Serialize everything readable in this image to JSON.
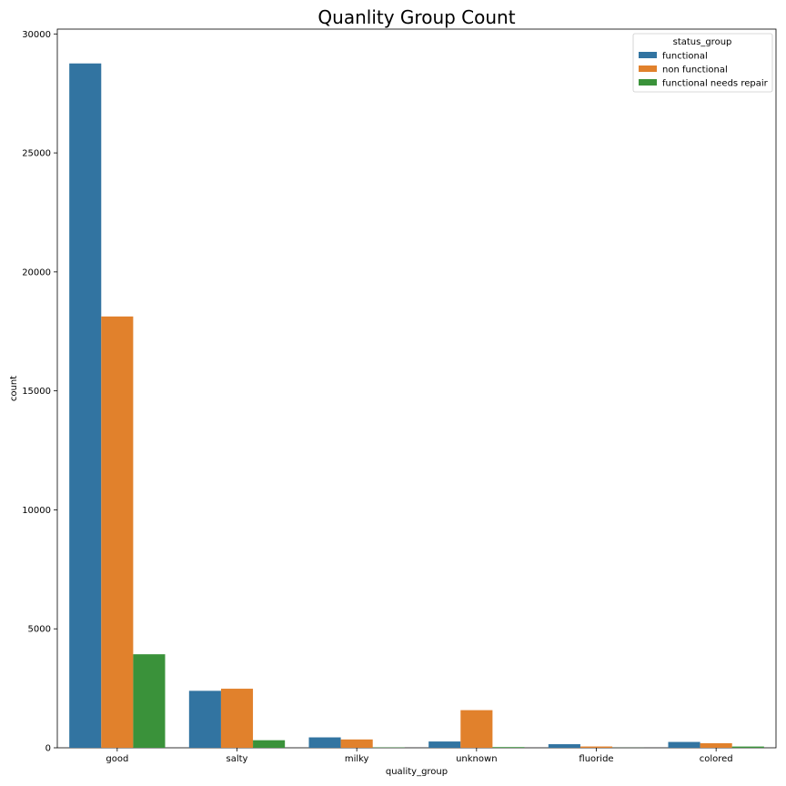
{
  "chart_data": {
    "type": "bar",
    "title": "Quanlity Group Count",
    "xlabel": "quality_group",
    "ylabel": "count",
    "categories": [
      "good",
      "salty",
      "milky",
      "unknown",
      "fluoride",
      "colored"
    ],
    "series": [
      {
        "name": "functional",
        "color": "#3274a1",
        "values": [
          28760,
          2394,
          438,
          265,
          151,
          246
        ]
      },
      {
        "name": "non functional",
        "color": "#e1812c",
        "values": [
          18126,
          2483,
          351,
          1582,
          55,
          191
        ]
      },
      {
        "name": "functional needs repair",
        "color": "#3a923a",
        "values": [
          3931,
          318,
          14,
          30,
          4,
          53
        ]
      }
    ],
    "ylim": [
      0,
      30000
    ],
    "yticks": [
      0,
      5000,
      10000,
      15000,
      20000,
      25000,
      30000
    ],
    "legend": {
      "title": "status_group",
      "placement": "top-right"
    },
    "grid": false
  }
}
